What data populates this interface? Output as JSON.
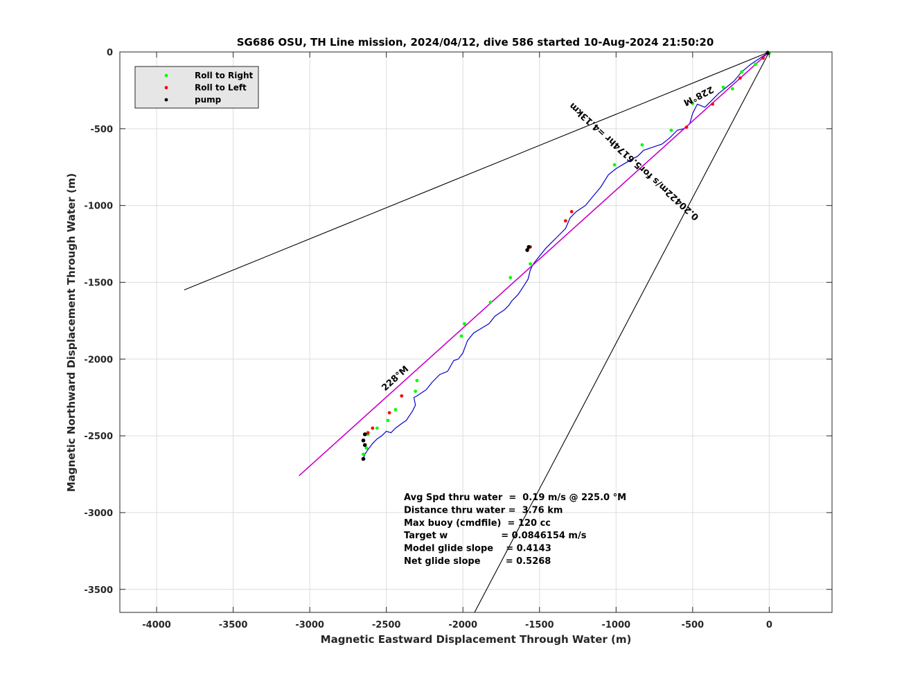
{
  "chart_data": {
    "type": "line",
    "title": "SG686 OSU, TH Line mission, 2024/04/12, dive 586 started 10-Aug-2024 21:50:20",
    "xlabel": "Magnetic Eastward Displacement Through Water (m)",
    "ylabel": "Magnetic Northward Displacement Through Water (m)",
    "xlim": [
      -4240,
      410
    ],
    "ylim": [
      -3650,
      0
    ],
    "xticks": [
      -4000,
      -3500,
      -3000,
      -2500,
      -2000,
      -1500,
      -1000,
      -500,
      0
    ],
    "yticks": [
      0,
      -500,
      -1000,
      -1500,
      -2000,
      -2500,
      -3000,
      -3500
    ],
    "grid": true,
    "legend": {
      "placement": "top-left",
      "entries": [
        {
          "name": "Roll to Right",
          "color": "#00ff00"
        },
        {
          "name": "Roll to Left",
          "color": "#ff0000"
        },
        {
          "name": "pump",
          "color": "#000000"
        }
      ]
    },
    "series": [
      {
        "kind": "track",
        "color": "#0000cc",
        "x": [
          0,
          -60,
          -120,
          -180,
          -230,
          -280,
          -330,
          -380,
          -420,
          -470,
          -500,
          -520,
          -560,
          -600,
          -650,
          -700,
          -760,
          -820,
          -860,
          -900,
          -950,
          -1000,
          -1050,
          -1100,
          -1150,
          -1200,
          -1260,
          -1300,
          -1330,
          -1380,
          -1420,
          -1460,
          -1500,
          -1540,
          -1560,
          -1575,
          -1600,
          -1640,
          -1680,
          -1700,
          -1730,
          -1760,
          -1790,
          -1830,
          -1880,
          -1930,
          -1970,
          -2000,
          -2030,
          -2060,
          -2100,
          -2150,
          -2200,
          -2240,
          -2270,
          -2300,
          -2320,
          -2310,
          -2330,
          -2370,
          -2400,
          -2440,
          -2470,
          -2500,
          -2530,
          -2560,
          -2590,
          -2620,
          -2640,
          -2650,
          -2660
        ],
        "y": [
          0,
          -40,
          -80,
          -130,
          -190,
          -230,
          -270,
          -320,
          -360,
          -340,
          -400,
          -470,
          -500,
          -510,
          -560,
          -600,
          -620,
          -640,
          -680,
          -700,
          -730,
          -760,
          -800,
          -880,
          -940,
          -1000,
          -1040,
          -1080,
          -1150,
          -1200,
          -1240,
          -1280,
          -1330,
          -1380,
          -1420,
          -1480,
          -1520,
          -1580,
          -1620,
          -1650,
          -1680,
          -1700,
          -1720,
          -1770,
          -1800,
          -1830,
          -1880,
          -1960,
          -2000,
          -2010,
          -2080,
          -2100,
          -2150,
          -2200,
          -2220,
          -2240,
          -2250,
          -2300,
          -2340,
          -2400,
          -2420,
          -2450,
          -2480,
          -2470,
          -2500,
          -2520,
          -2550,
          -2590,
          -2620,
          -2650,
          -2660
        ]
      },
      {
        "kind": "heading-line",
        "color": "#cc00cc",
        "x": [
          0,
          -3070
        ],
        "y": [
          0,
          -2760
        ]
      }
    ],
    "cone_lines": [
      {
        "x": [
          0,
          -3820
        ],
        "y": [
          0,
          -1550
        ]
      },
      {
        "x": [
          0,
          -1940
        ],
        "y": [
          0,
          -3680
        ]
      },
      {
        "x": [
          0,
          -3070
        ],
        "y": [
          0,
          -2760
        ]
      }
    ],
    "markers": {
      "roll_right": {
        "color": "#00ff00",
        "x": [
          0,
          -90,
          -180,
          -240,
          -300,
          -500,
          -640,
          -830,
          -1010,
          -1560,
          -1690,
          -1820,
          -1990,
          -2010,
          -2300,
          -2310,
          -2440,
          -2490,
          -2560,
          -2620,
          -2630,
          -2650
        ],
        "y": [
          -10,
          -80,
          -130,
          -240,
          -230,
          -335,
          -510,
          -605,
          -735,
          -1380,
          -1470,
          -1630,
          -1770,
          -1850,
          -2140,
          -2210,
          -2330,
          -2400,
          -2450,
          -2490,
          -2580,
          -2620
        ]
      },
      "roll_left": {
        "color": "#ff0000",
        "x": [
          -40,
          -190,
          -370,
          -540,
          -1290,
          -1330,
          -1560,
          -2400,
          -2480,
          -2590,
          -2620
        ],
        "y": [
          -40,
          -170,
          -340,
          -490,
          -1040,
          -1100,
          -1270,
          -2240,
          -2350,
          -2450,
          -2480
        ]
      },
      "pump": {
        "color": "#000000",
        "x": [
          -10,
          -1580,
          -1570,
          -2640,
          -2650,
          -2640,
          -2650
        ],
        "y": [
          -5,
          -1290,
          -1270,
          -2490,
          -2530,
          -2560,
          -2650
        ]
      }
    },
    "annotations": [
      {
        "text": "228°M",
        "x": -470,
        "y": -270,
        "rotation": 153
      },
      {
        "text": "0.20422m/s for5.6174hr =4.13km",
        "x": -870,
        "y": -700,
        "rotation": -138
      },
      {
        "text": "228°M",
        "x": -2430,
        "y": -2140,
        "rotation": -42
      }
    ],
    "stats": [
      "Avg Spd thru water  =  0.19 m/s @ 225.0 °M",
      "Distance thru water =  3.76 km",
      "Max buoy (cmdfile)  = 120 cc",
      "Target w                 = 0.0846154 m/s",
      "Model glide slope    = 0.4143",
      "Net glide slope        = 0.5268"
    ]
  }
}
